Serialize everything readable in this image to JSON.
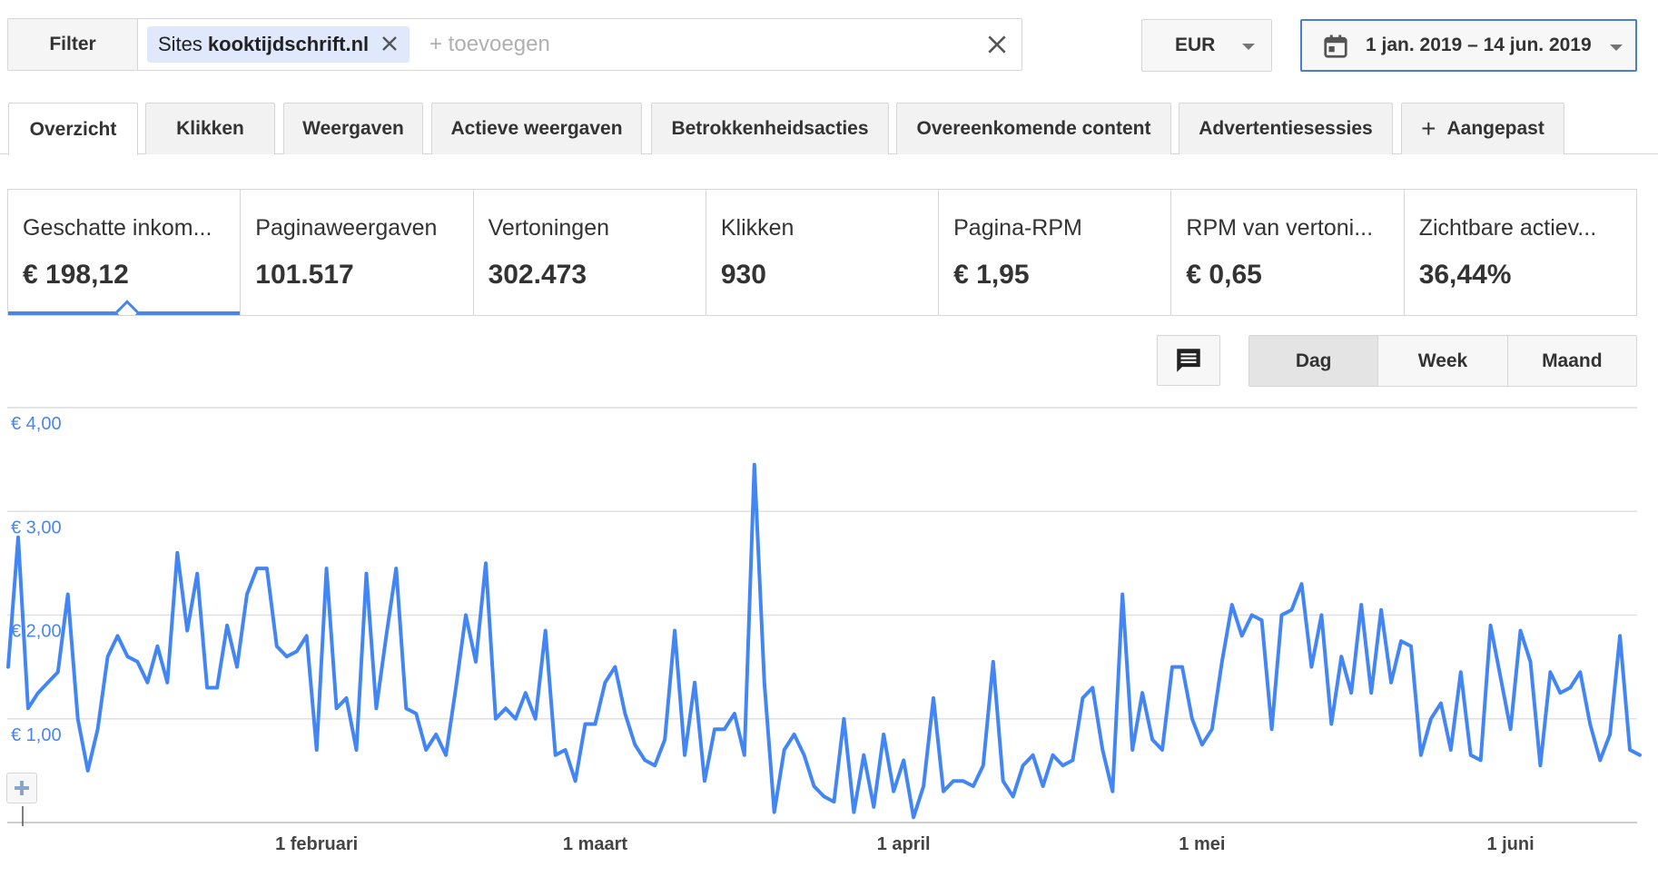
{
  "filter": {
    "button_label": "Filter",
    "chip_prefix": "Sites",
    "chip_value": "kooktijdschrift.nl",
    "input_placeholder": "+ toevoegen"
  },
  "currency": {
    "value": "EUR"
  },
  "daterange": {
    "value": "1 jan. 2019 – 14 jun. 2019"
  },
  "tabs": [
    {
      "label": "Overzicht",
      "active": true
    },
    {
      "label": "Klikken"
    },
    {
      "label": "Weergaven"
    },
    {
      "label": "Actieve weergaven"
    },
    {
      "label": "Betrokkenheidsacties"
    },
    {
      "label": "Overeenkomende content"
    },
    {
      "label": "Advertentiesessies"
    },
    {
      "label": "Aangepast"
    }
  ],
  "metrics": [
    {
      "label": "Geschatte inkom...",
      "value": "€ 198,12"
    },
    {
      "label": "Paginaweergaven",
      "value": "101.517"
    },
    {
      "label": "Vertoningen",
      "value": "302.473"
    },
    {
      "label": "Klikken",
      "value": "930"
    },
    {
      "label": "Pagina-RPM",
      "value": "€ 1,95"
    },
    {
      "label": "RPM van vertoni...",
      "value": "€ 0,65"
    },
    {
      "label": "Zichtbare actiev...",
      "value": "36,44%"
    }
  ],
  "granularity": {
    "day": "Dag",
    "week": "Week",
    "month": "Maand"
  },
  "colors": {
    "accent": "#4a86e8",
    "line": "#4285f4",
    "grid": "#e0e0e0"
  },
  "chart_data": {
    "type": "line",
    "title": "",
    "xlabel": "",
    "ylabel": "",
    "ylim": [
      0,
      4
    ],
    "y_ticks": [
      1,
      2,
      3,
      4
    ],
    "y_tick_labels": [
      "€ 1,00",
      "€ 2,00",
      "€ 3,00",
      "€ 4,00"
    ],
    "x_tick_labels": [
      {
        "label": "1 februari",
        "day": 31
      },
      {
        "label": "1 maart",
        "day": 59
      },
      {
        "label": "1 april",
        "day": 90
      },
      {
        "label": "1 mei",
        "day": 120
      },
      {
        "label": "1 juni",
        "day": 151
      }
    ],
    "x_range": [
      "2019-01-01",
      "2019-06-14"
    ],
    "series": [
      {
        "values": [
          1.5,
          2.75,
          1.1,
          1.25,
          1.35,
          1.45,
          2.2,
          1.0,
          0.5,
          0.9,
          1.6,
          1.8,
          1.6,
          1.55,
          1.35,
          1.7,
          1.35,
          2.6,
          1.85,
          2.4,
          1.3,
          1.3,
          1.9,
          1.5,
          2.2,
          2.45,
          2.45,
          1.7,
          1.6,
          1.65,
          1.8,
          0.7,
          2.45,
          1.1,
          1.2,
          0.7,
          2.4,
          1.1,
          1.8,
          2.45,
          1.1,
          1.05,
          0.7,
          0.85,
          0.65,
          1.3,
          2.0,
          1.55,
          2.5,
          1.0,
          1.1,
          1.0,
          1.25,
          1.0,
          1.85,
          0.65,
          0.7,
          0.4,
          0.95,
          0.95,
          1.35,
          1.5,
          1.05,
          0.75,
          0.6,
          0.55,
          0.8,
          1.85,
          0.65,
          1.35,
          0.4,
          0.9,
          0.9,
          1.05,
          0.65,
          3.45,
          1.35,
          0.1,
          0.7,
          0.85,
          0.65,
          0.35,
          0.25,
          0.2,
          1.0,
          0.1,
          0.65,
          0.15,
          0.85,
          0.3,
          0.6,
          0.05,
          0.35,
          1.2,
          0.3,
          0.4,
          0.4,
          0.35,
          0.55,
          1.55,
          0.4,
          0.25,
          0.55,
          0.65,
          0.35,
          0.65,
          0.55,
          0.6,
          1.2,
          1.3,
          0.7,
          0.3,
          2.2,
          0.7,
          1.25,
          0.8,
          0.7,
          1.5,
          1.5,
          1.0,
          0.75,
          0.9,
          1.55,
          2.1,
          1.8,
          2.0,
          1.95,
          0.9,
          2.0,
          2.05,
          2.3,
          1.5,
          2.0,
          0.95,
          1.6,
          1.25,
          2.1,
          1.25,
          2.05,
          1.35,
          1.75,
          1.7,
          0.65,
          1.0,
          1.15,
          0.7,
          1.45,
          0.65,
          0.6,
          1.9,
          1.4,
          0.9,
          1.85,
          1.55,
          0.55,
          1.45,
          1.25,
          1.3,
          1.45,
          0.95,
          0.6,
          0.85,
          1.8,
          0.7,
          0.65
        ]
      }
    ]
  }
}
